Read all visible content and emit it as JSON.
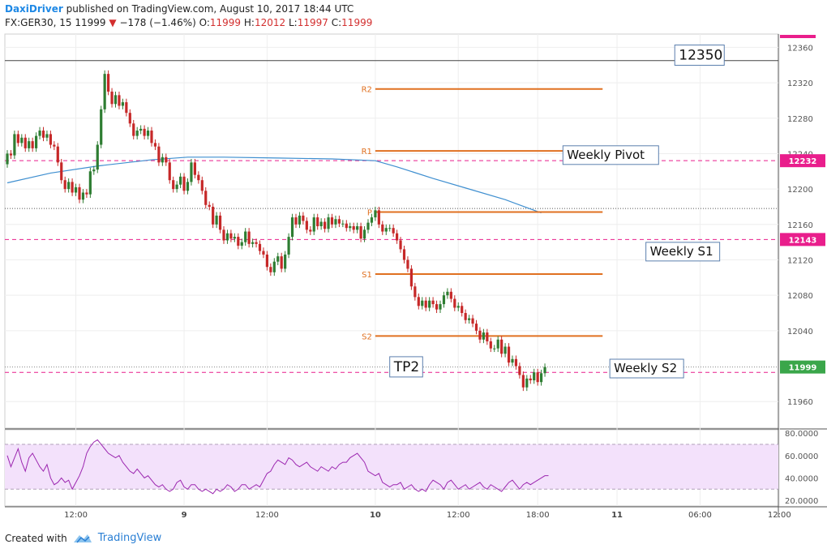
{
  "header": {
    "author": "DaxiDriver",
    "published_text": "published on TradingView.com, August 10, 2017 18:44 UTC",
    "symbol": "FX:GER30, 15",
    "last": "11999",
    "arrow": "▼",
    "change": "−178 (−1.46%)",
    "o_label": "O:",
    "o": "11999",
    "h_label": "H:",
    "h": "12012",
    "l_label": "L:",
    "l": "11997",
    "c_label": "C:",
    "c": "11999"
  },
  "footer": {
    "created_with": "Created with",
    "brand": "TradingView"
  },
  "colors": {
    "up": "#2e7d32",
    "down": "#c62828",
    "ma": "#3f8fd0",
    "pivot": "#e07020",
    "magenta": "#e91e8c",
    "rsi": "#9c27b0",
    "rsi_band": "#f3e1fb"
  },
  "chart_data": [
    {
      "type": "candlestick",
      "symbol": "FX:GER30, 15",
      "y_ticks": [
        12360,
        12320,
        12280,
        12240,
        12200,
        12160,
        12120,
        12080,
        12040,
        11960
      ],
      "ylim": [
        11930,
        12375
      ],
      "x_ticks": [
        {
          "label": "12:00",
          "i": 19
        },
        {
          "label": "9",
          "i": 49
        },
        {
          "label": "12:00",
          "i": 72
        },
        {
          "label": "10",
          "i": 102
        },
        {
          "label": "12:00",
          "i": 125
        },
        {
          "label": "18:00",
          "i": 147
        },
        {
          "label": "11",
          "i": 169
        },
        {
          "label": "06:00",
          "i": 192
        },
        {
          "label": "12:00",
          "i": 214
        }
      ],
      "candles": [
        [
          12228,
          12240
        ],
        [
          12240,
          12238
        ],
        [
          12238,
          12262
        ],
        [
          12262,
          12252
        ],
        [
          12252,
          12258
        ],
        [
          12258,
          12246
        ],
        [
          12246,
          12254
        ],
        [
          12254,
          12246
        ],
        [
          12246,
          12260
        ],
        [
          12260,
          12266
        ],
        [
          12266,
          12258
        ],
        [
          12258,
          12262
        ],
        [
          12262,
          12250
        ],
        [
          12250,
          12248
        ],
        [
          12248,
          12230
        ],
        [
          12230,
          12210
        ],
        [
          12210,
          12200
        ],
        [
          12200,
          12208
        ],
        [
          12208,
          12196
        ],
        [
          12196,
          12202
        ],
        [
          12202,
          12188
        ],
        [
          12188,
          12196
        ],
        [
          12196,
          12194
        ],
        [
          12194,
          12220
        ],
        [
          12220,
          12222
        ],
        [
          12222,
          12250
        ],
        [
          12250,
          12290
        ],
        [
          12290,
          12330
        ],
        [
          12330,
          12310
        ],
        [
          12310,
          12296
        ],
        [
          12296,
          12306
        ],
        [
          12306,
          12294
        ],
        [
          12294,
          12298
        ],
        [
          12298,
          12286
        ],
        [
          12286,
          12274
        ],
        [
          12274,
          12260
        ],
        [
          12260,
          12266
        ],
        [
          12266,
          12268
        ],
        [
          12268,
          12260
        ],
        [
          12260,
          12266
        ],
        [
          12266,
          12252
        ],
        [
          12252,
          12248
        ],
        [
          12248,
          12230
        ],
        [
          12230,
          12236
        ],
        [
          12236,
          12230
        ],
        [
          12230,
          12210
        ],
        [
          12210,
          12200
        ],
        [
          12200,
          12205
        ],
        [
          12205,
          12214
        ],
        [
          12214,
          12198
        ],
        [
          12198,
          12208
        ],
        [
          12208,
          12230
        ],
        [
          12230,
          12216
        ],
        [
          12216,
          12210
        ],
        [
          12210,
          12198
        ],
        [
          12198,
          12182
        ],
        [
          12182,
          12180
        ],
        [
          12180,
          12160
        ],
        [
          12160,
          12170
        ],
        [
          12170,
          12154
        ],
        [
          12154,
          12142
        ],
        [
          12142,
          12150
        ],
        [
          12150,
          12144
        ],
        [
          12144,
          12146
        ],
        [
          12146,
          12136
        ],
        [
          12136,
          12140
        ],
        [
          12140,
          12152
        ],
        [
          12152,
          12138
        ],
        [
          12138,
          12140
        ],
        [
          12140,
          12138
        ],
        [
          12138,
          12130
        ],
        [
          12130,
          12126
        ],
        [
          12126,
          12112
        ],
        [
          12112,
          12106
        ],
        [
          12106,
          12118
        ],
        [
          12118,
          12124
        ],
        [
          12124,
          12110
        ],
        [
          12110,
          12126
        ],
        [
          12126,
          12146
        ],
        [
          12146,
          12168
        ],
        [
          12168,
          12160
        ],
        [
          12160,
          12170
        ],
        [
          12170,
          12164
        ],
        [
          12164,
          12154
        ],
        [
          12154,
          12152
        ],
        [
          12152,
          12168
        ],
        [
          12168,
          12158
        ],
        [
          12158,
          12163
        ],
        [
          12163,
          12155
        ],
        [
          12155,
          12168
        ],
        [
          12168,
          12160
        ],
        [
          12160,
          12166
        ],
        [
          12166,
          12161
        ],
        [
          12161,
          12161
        ],
        [
          12161,
          12156
        ],
        [
          12156,
          12158
        ],
        [
          12158,
          12154
        ],
        [
          12154,
          12158
        ],
        [
          12158,
          12144
        ],
        [
          12144,
          12154
        ],
        [
          12154,
          12162
        ],
        [
          12162,
          12168
        ],
        [
          12168,
          12176
        ],
        [
          12176,
          12160
        ],
        [
          12160,
          12152
        ],
        [
          12152,
          12156
        ],
        [
          12156,
          12156
        ],
        [
          12156,
          12150
        ],
        [
          12150,
          12142
        ],
        [
          12142,
          12132
        ],
        [
          12132,
          12120
        ],
        [
          12120,
          12110
        ],
        [
          12110,
          12090
        ],
        [
          12090,
          12078
        ],
        [
          12078,
          12068
        ],
        [
          12068,
          12074
        ],
        [
          12074,
          12066
        ],
        [
          12066,
          12074
        ],
        [
          12074,
          12070
        ],
        [
          12070,
          12064
        ],
        [
          12064,
          12070
        ],
        [
          12070,
          12080
        ],
        [
          12080,
          12084
        ],
        [
          12084,
          12076
        ],
        [
          12076,
          12066
        ],
        [
          12066,
          12068
        ],
        [
          12068,
          12060
        ],
        [
          12060,
          12052
        ],
        [
          12052,
          12054
        ],
        [
          12054,
          12048
        ],
        [
          12048,
          12040
        ],
        [
          12040,
          12030
        ],
        [
          12030,
          12038
        ],
        [
          12038,
          12028
        ],
        [
          12028,
          12020
        ],
        [
          12020,
          12020
        ],
        [
          12020,
          12030
        ],
        [
          12030,
          12014
        ],
        [
          12014,
          12022
        ],
        [
          12022,
          12004
        ],
        [
          12004,
          12008
        ],
        [
          12008,
          12000
        ],
        [
          12000,
          11990
        ],
        [
          11990,
          11976
        ],
        [
          11976,
          11986
        ],
        [
          11986,
          11984
        ],
        [
          11984,
          11993
        ],
        [
          11993,
          11982
        ],
        [
          11982,
          11992
        ],
        [
          11992,
          11999
        ]
      ],
      "ma_sma": [
        [
          0,
          12207
        ],
        [
          12,
          12218
        ],
        [
          25,
          12226
        ],
        [
          40,
          12233
        ],
        [
          50,
          12236
        ],
        [
          60,
          12236
        ],
        [
          75,
          12235
        ],
        [
          90,
          12234
        ],
        [
          102,
          12232
        ],
        [
          108,
          12225
        ],
        [
          118,
          12212
        ],
        [
          128,
          12200
        ],
        [
          138,
          12188
        ],
        [
          148,
          12173
        ]
      ],
      "lines": [
        {
          "value": 12345,
          "style": "solid",
          "color": "#444444"
        },
        {
          "value": 12232,
          "style": "dashed",
          "color": "#e91e8c",
          "price_tag": "12232"
        },
        {
          "value": 12178,
          "style": "dotted",
          "color": "#555555"
        },
        {
          "value": 12143,
          "style": "dashed",
          "color": "#e91e8c",
          "price_tag": "12143"
        },
        {
          "value": 11999,
          "style": "dotted",
          "color": "#888888"
        },
        {
          "value": 11993,
          "style": "dashed",
          "color": "#e91e8c"
        }
      ],
      "pivots": [
        {
          "label": "R2",
          "value": 12313
        },
        {
          "label": "R1",
          "value": 12243
        },
        {
          "label": "P",
          "value": 12174
        },
        {
          "label": "S1",
          "value": 12104
        },
        {
          "label": "S2",
          "value": 12034
        }
      ],
      "pivot_range": [
        102,
        165
      ],
      "annotations": [
        {
          "text": "12350",
          "i": 185,
          "y": 12348
        },
        {
          "text": "Weekly Pivot",
          "i": 154,
          "y": 12236
        },
        {
          "text": "Weekly S1",
          "i": 177,
          "y": 12127
        },
        {
          "text": "TP2",
          "i": 106,
          "y": 11996
        },
        {
          "text": "Weekly S2",
          "i": 167,
          "y": 11995
        }
      ],
      "last_price_tag": "11999"
    },
    {
      "type": "line",
      "indicator": "RSI",
      "y_ticks": [
        "80.0000",
        "60.0000",
        "40.0000",
        "20.0000"
      ],
      "ylim": [
        15,
        83
      ],
      "band": [
        30,
        70
      ],
      "values": [
        60,
        50,
        58,
        66,
        54,
        46,
        58,
        62,
        56,
        50,
        46,
        52,
        40,
        34,
        36,
        40,
        36,
        38,
        30,
        36,
        42,
        50,
        62,
        68,
        72,
        74,
        70,
        66,
        62,
        60,
        58,
        60,
        54,
        50,
        46,
        44,
        48,
        44,
        40,
        42,
        38,
        34,
        32,
        34,
        30,
        28,
        30,
        36,
        38,
        32,
        30,
        34,
        34,
        30,
        28,
        30,
        28,
        26,
        30,
        28,
        30,
        34,
        32,
        28,
        30,
        34,
        34,
        30,
        32,
        34,
        32,
        38,
        44,
        46,
        52,
        56,
        54,
        52,
        58,
        56,
        52,
        50,
        52,
        54,
        50,
        48,
        46,
        50,
        48,
        46,
        50,
        48,
        52,
        54,
        54,
        58,
        60,
        62,
        58,
        54,
        46,
        44,
        42,
        44,
        36,
        34,
        32,
        34,
        34,
        36,
        30,
        32,
        34,
        30,
        28,
        30,
        28,
        34,
        38,
        36,
        34,
        30,
        36,
        38,
        34,
        30,
        32,
        34,
        30,
        32,
        34,
        36,
        32,
        30,
        34,
        32,
        30,
        28,
        32,
        36,
        38,
        34,
        30,
        34,
        36,
        34,
        36,
        38,
        40,
        42,
        42
      ]
    }
  ]
}
